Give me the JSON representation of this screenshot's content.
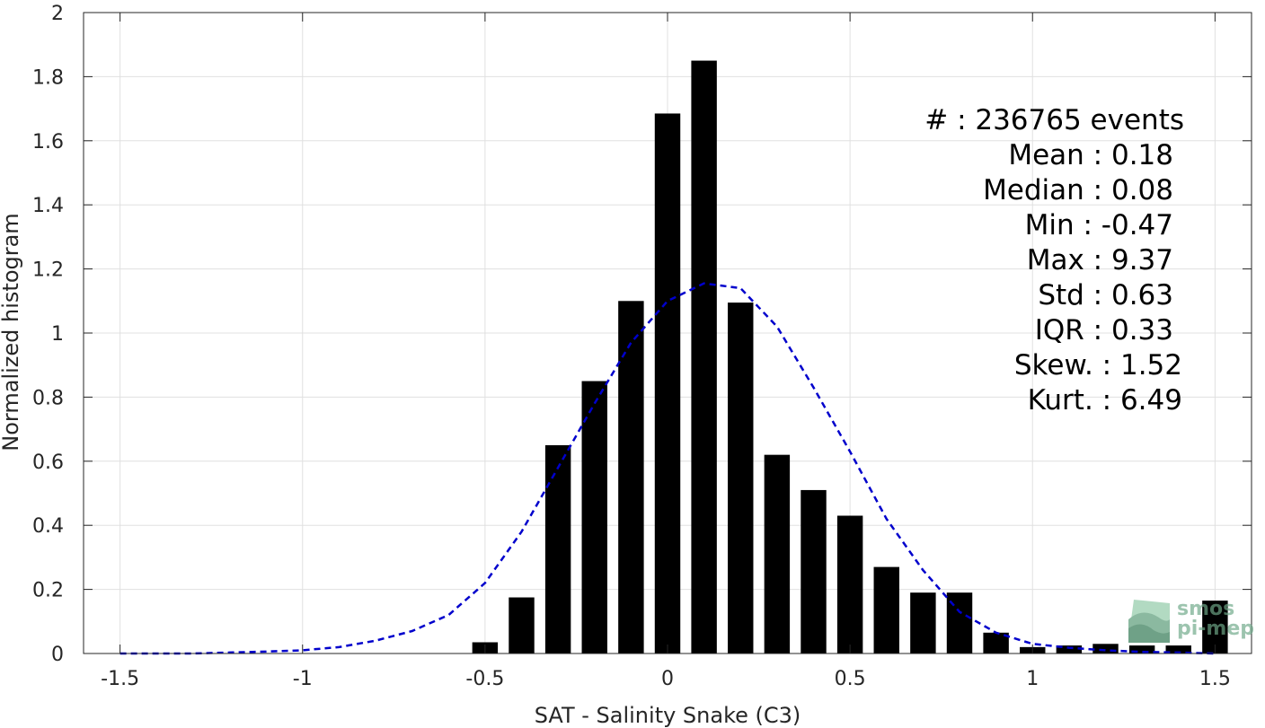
{
  "chart_data": {
    "type": "bar",
    "xlabel": "SAT - Salinity Snake (C3)",
    "ylabel": "Normalized histogram",
    "xlim": [
      -1.6,
      1.6
    ],
    "ylim": [
      0,
      2
    ],
    "grid": true,
    "x_ticks": [
      -1.5,
      -1,
      -0.5,
      0,
      0.5,
      1,
      1.5
    ],
    "x_tick_labels": [
      "-1.5",
      "-1",
      "-0.5",
      "0",
      "0.5",
      "1",
      "1.5"
    ],
    "y_ticks": [
      0,
      0.2,
      0.4,
      0.6,
      0.8,
      1,
      1.2,
      1.4,
      1.6,
      1.8,
      2
    ],
    "y_tick_labels": [
      "0",
      "0.2",
      "0.4",
      "0.6",
      "0.8",
      "1",
      "1.2",
      "1.4",
      "1.6",
      "1.8",
      "2"
    ],
    "bar_width": 0.07,
    "series": [
      {
        "kind": "bar",
        "color": "#000000",
        "x": [
          -0.5,
          -0.4,
          -0.3,
          -0.2,
          -0.1,
          0,
          0.1,
          0.2,
          0.3,
          0.4,
          0.5,
          0.6,
          0.7,
          0.8,
          0.9,
          1.0,
          1.1,
          1.2,
          1.3,
          1.4,
          1.5
        ],
        "values": [
          0.035,
          0.175,
          0.65,
          0.85,
          1.1,
          1.685,
          1.85,
          1.095,
          0.62,
          0.51,
          0.43,
          0.27,
          0.19,
          0.19,
          0.065,
          0.02,
          0.025,
          0.03,
          0.025,
          0.025,
          0.165
        ]
      },
      {
        "kind": "line",
        "style": "dashed",
        "color": "#0000cc",
        "x": [
          -1.5,
          -1.4,
          -1.3,
          -1.2,
          -1.1,
          -1.0,
          -0.9,
          -0.8,
          -0.7,
          -0.6,
          -0.5,
          -0.4,
          -0.3,
          -0.2,
          -0.1,
          0.0,
          0.1,
          0.2,
          0.3,
          0.4,
          0.5,
          0.6,
          0.7,
          0.8,
          0.9,
          1.0,
          1.1,
          1.2,
          1.3,
          1.4,
          1.5
        ],
        "values": [
          0.0,
          0.0,
          0.0,
          0.003,
          0.006,
          0.01,
          0.02,
          0.04,
          0.07,
          0.12,
          0.22,
          0.38,
          0.58,
          0.78,
          0.97,
          1.1,
          1.155,
          1.14,
          1.02,
          0.83,
          0.63,
          0.42,
          0.26,
          0.13,
          0.065,
          0.03,
          0.018,
          0.01,
          0.005,
          0.003,
          0.0
        ]
      }
    ],
    "annotations": [
      {
        "label": "#  ",
        "sep": " : ",
        "value": "236765 events"
      },
      {
        "label": "Mean",
        "sep": " : ",
        "value": "0.18"
      },
      {
        "label": "Median",
        "sep": " : ",
        "value": "0.08"
      },
      {
        "label": "Min",
        "sep": " : ",
        "value": "-0.47"
      },
      {
        "label": "Max",
        "sep": " : ",
        "value": "9.37"
      },
      {
        "label": "Std",
        "sep": " : ",
        "value": "0.63"
      },
      {
        "label": "IQR",
        "sep": " : ",
        "value": "0.33"
      },
      {
        "label": "Skew.",
        "sep": " : ",
        "value": "1.52"
      },
      {
        "label": "Kurt.",
        "sep": " : ",
        "value": "6.49"
      }
    ]
  },
  "stats_lines": [
    "#  : 236765 events",
    "Mean : 0.18",
    "Median : 0.08",
    "Min : -0.47",
    "Max : 9.37",
    "Std : 0.63",
    "IQR : 0.33",
    "Skew. : 1.52",
    "Kurt. : 6.49"
  ],
  "logo": {
    "line1": "smos",
    "line2": "pi-mep"
  },
  "colors": {
    "bars": "#000000",
    "fit_line": "#0000cc",
    "grid": "#e0e0e0",
    "axes": "#262626",
    "logo": "#6fa889"
  }
}
